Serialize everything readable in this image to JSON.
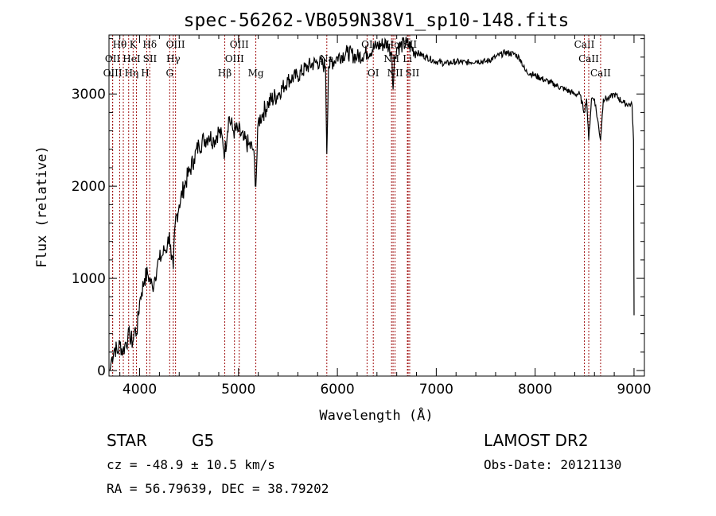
{
  "chart_data": {
    "type": "line",
    "title": "spec-56262-VB059N38V1_sp10-148.fits",
    "xlabel": "Wavelength (Å)",
    "ylabel": "Flux (relative)",
    "xlim": [
      3690,
      9105
    ],
    "ylim": [
      -60,
      3640
    ],
    "xticks": [
      4000,
      5000,
      6000,
      7000,
      8000,
      9000
    ],
    "yticks": [
      0,
      1000,
      2000,
      3000
    ],
    "grid": false,
    "series": [
      {
        "name": "flux",
        "x": [
          3700,
          3720,
          3750,
          3780,
          3800,
          3830,
          3850,
          3880,
          3900,
          3930,
          3950,
          3970,
          4000,
          4020,
          4050,
          4080,
          4100,
          4130,
          4150,
          4180,
          4200,
          4230,
          4250,
          4280,
          4300,
          4320,
          4340,
          4360,
          4400,
          4450,
          4500,
          4550,
          4600,
          4650,
          4700,
          4750,
          4800,
          4840,
          4861,
          4900,
          4950,
          5000,
          5050,
          5100,
          5150,
          5175,
          5200,
          5250,
          5300,
          5400,
          5500,
          5600,
          5700,
          5800,
          5880,
          5893,
          5910,
          6000,
          6100,
          6200,
          6300,
          6400,
          6500,
          6550,
          6563,
          6580,
          6600,
          6700,
          6800,
          6900,
          7000,
          7100,
          7200,
          7300,
          7400,
          7500,
          7600,
          7700,
          7800,
          7850,
          7900,
          8000,
          8100,
          8200,
          8300,
          8400,
          8450,
          8498,
          8520,
          8542,
          8570,
          8600,
          8662,
          8690,
          8750,
          8800,
          8900,
          8980,
          8995,
          9000
        ],
        "y": [
          0,
          150,
          250,
          200,
          300,
          200,
          280,
          350,
          380,
          300,
          450,
          400,
          750,
          850,
          1000,
          1050,
          1000,
          900,
          1000,
          1150,
          1200,
          1250,
          1300,
          1350,
          1500,
          1200,
          1100,
          1600,
          1800,
          2000,
          2150,
          2300,
          2450,
          2500,
          2550,
          2500,
          2600,
          2500,
          2350,
          2750,
          2600,
          2600,
          2500,
          2450,
          2400,
          2000,
          2700,
          2800,
          2900,
          3000,
          3150,
          3200,
          3300,
          3350,
          3300,
          2350,
          3300,
          3400,
          3450,
          3400,
          3450,
          3520,
          3550,
          3450,
          3050,
          3400,
          3500,
          3550,
          3450,
          3400,
          3350,
          3330,
          3350,
          3340,
          3360,
          3350,
          3400,
          3450,
          3430,
          3380,
          3250,
          3200,
          3150,
          3100,
          3050,
          3000,
          3000,
          2800,
          2950,
          2500,
          2950,
          2950,
          2500,
          2950,
          2950,
          3000,
          2900,
          2880,
          2500,
          600
        ]
      }
    ],
    "line_markers": [
      {
        "wavelength": 3727,
        "label": "OII",
        "row": 2
      },
      {
        "wavelength": 3727,
        "label": "OIII",
        "row": 3
      },
      {
        "wavelength": 3798,
        "label": "Hθ",
        "row": 1
      },
      {
        "wavelength": 3835,
        "label": "Hη",
        "row": 3
      },
      {
        "wavelength": 3889,
        "label": "HeI",
        "row": 2
      },
      {
        "wavelength": 3934,
        "label": "K",
        "row": 1
      },
      {
        "wavelength": 3968,
        "label": "H",
        "row": 3
      },
      {
        "wavelength": 4072,
        "label": "SII",
        "row": 2
      },
      {
        "wavelength": 4102,
        "label": "Hδ",
        "row": 1
      },
      {
        "wavelength": 4304,
        "label": "G",
        "row": 3
      },
      {
        "wavelength": 4340,
        "label": "Hγ",
        "row": 2
      },
      {
        "wavelength": 4363,
        "label": "OIII",
        "row": 1
      },
      {
        "wavelength": 4861,
        "label": "Hβ",
        "row": 3
      },
      {
        "wavelength": 4959,
        "label": "OIII",
        "row": 2
      },
      {
        "wavelength": 5007,
        "label": "OIII",
        "row": 1
      },
      {
        "wavelength": 5175,
        "label": "Mg",
        "row": 3
      },
      {
        "wavelength": 5893,
        "label": "Na",
        "row": 2
      },
      {
        "wavelength": 6300,
        "label": "OI",
        "row": 1
      },
      {
        "wavelength": 6363,
        "label": "OI",
        "row": 3
      },
      {
        "wavelength": 6548,
        "label": "NII",
        "row": 2
      },
      {
        "wavelength": 6563,
        "label": "Hα",
        "row": 1
      },
      {
        "wavelength": 6583,
        "label": "NII",
        "row": 3
      },
      {
        "wavelength": 6708,
        "label": "Li",
        "row": 2
      },
      {
        "wavelength": 6716,
        "label": "SII",
        "row": 3
      },
      {
        "wavelength": 6731,
        "label": "SII",
        "row": 1
      },
      {
        "wavelength": 8498,
        "label": "CaII",
        "row": 1
      },
      {
        "wavelength": 8542,
        "label": "CaII",
        "row": 2
      },
      {
        "wavelength": 8662,
        "label": "CaII",
        "row": 3
      }
    ]
  },
  "info": {
    "class": "STAR",
    "subclass": "G5",
    "survey": "LAMOST DR2",
    "cz": "cz = -48.9 ± 10.5 km/s",
    "obs_date": "Obs-Date: 20121130",
    "coords": "RA =  56.79639, DEC =  38.79202"
  }
}
